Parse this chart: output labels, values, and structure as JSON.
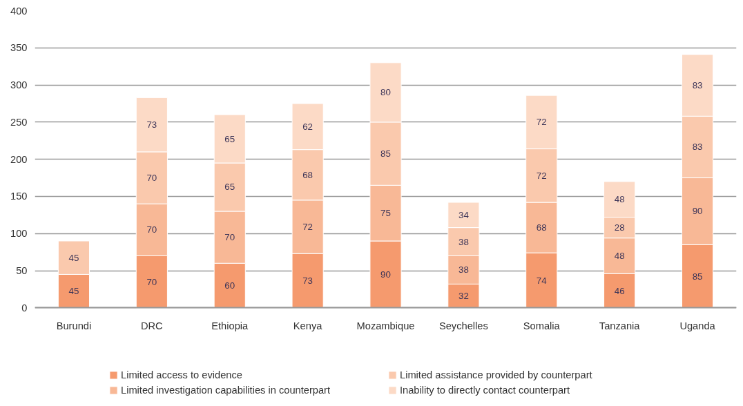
{
  "chart_data": {
    "type": "bar",
    "stacked": true,
    "categories": [
      "Burundi",
      "DRC",
      "Ethiopia",
      "Kenya",
      "Mozambique",
      "Seychelles",
      "Somalia",
      "Tanzania",
      "Uganda"
    ],
    "series": [
      {
        "name": "Limited access to evidence",
        "color": "#f59a6e",
        "values": [
          45,
          70,
          60,
          73,
          90,
          32,
          74,
          46,
          85
        ]
      },
      {
        "name": "Limited investigation capabilities in counterpart",
        "color": "#f8b896",
        "values": [
          null,
          70,
          70,
          72,
          75,
          38,
          68,
          48,
          90
        ]
      },
      {
        "name": "Limited assistance provided by counterpart",
        "color": "#fac9ad",
        "values": [
          45,
          70,
          65,
          68,
          85,
          38,
          72,
          28,
          83
        ]
      },
      {
        "name": "Inability to directly contact counterpart",
        "color": "#fcdac6",
        "values": [
          null,
          73,
          65,
          62,
          80,
          34,
          72,
          48,
          83
        ]
      }
    ],
    "ylim": [
      0,
      400
    ],
    "yticks": [
      0,
      50,
      100,
      150,
      200,
      250,
      300,
      350,
      400
    ],
    "grid": "y",
    "legend": "bottom",
    "data_labels": true
  }
}
